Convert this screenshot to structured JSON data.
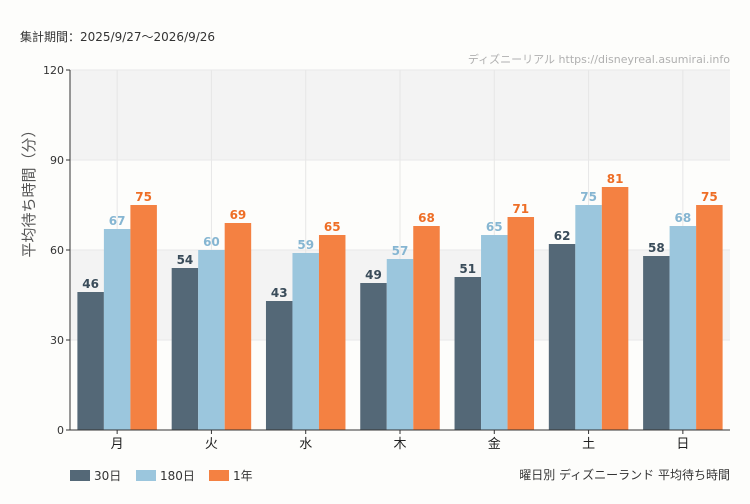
{
  "header": {
    "period_label": "集計期間：2025/9/27〜2026/9/26",
    "watermark": "ディズニーリアル https://disneyreal.asumirai.info"
  },
  "footer": {
    "chart_caption": "曜日別 ディズニーランド 平均待ち時間"
  },
  "chart_data": {
    "type": "bar",
    "title": "",
    "ylabel": "平均待ち時間（分）",
    "xlabel": "",
    "ylim": [
      0,
      120
    ],
    "yticks": [
      0,
      30,
      60,
      90,
      120
    ],
    "grid": true,
    "legend_position": "bottom-left",
    "categories": [
      "月",
      "火",
      "水",
      "木",
      "金",
      "土",
      "日"
    ],
    "series": [
      {
        "name": "30日",
        "color": "#546877",
        "label_color": "#3a4c5a",
        "values": [
          46,
          54,
          43,
          49,
          51,
          62,
          58
        ]
      },
      {
        "name": "180日",
        "color": "#9bc6dd",
        "label_color": "#86b6d2",
        "values": [
          67,
          60,
          59,
          57,
          65,
          75,
          68
        ]
      },
      {
        "name": "1年",
        "color": "#f48142",
        "label_color": "#ee6e26",
        "values": [
          75,
          69,
          65,
          68,
          71,
          81,
          75
        ]
      }
    ]
  }
}
